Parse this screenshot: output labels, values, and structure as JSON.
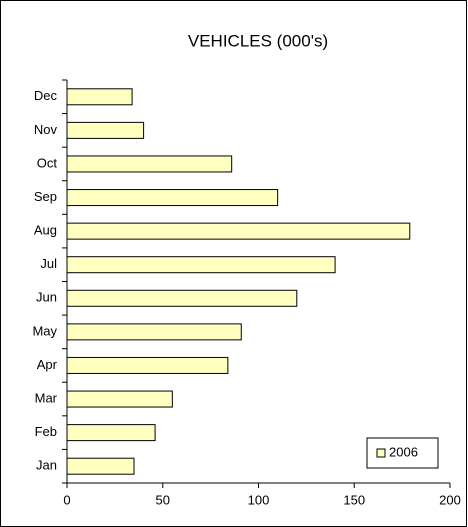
{
  "chart_data": {
    "type": "bar",
    "orientation": "horizontal",
    "title": "VEHICLES (000's)",
    "categories": [
      "Jan",
      "Feb",
      "Mar",
      "Apr",
      "May",
      "Jun",
      "Jul",
      "Aug",
      "Sep",
      "Oct",
      "Nov",
      "Dec"
    ],
    "series": [
      {
        "name": "2006",
        "color": "#ffffc0",
        "values": [
          35,
          46,
          55,
          84,
          91,
          120,
          140,
          179,
          110,
          86,
          40,
          34
        ]
      }
    ],
    "xlim": [
      0,
      200
    ],
    "xticks": [
      0,
      50,
      100,
      150,
      200
    ],
    "grid": false,
    "legend": "lower right"
  }
}
